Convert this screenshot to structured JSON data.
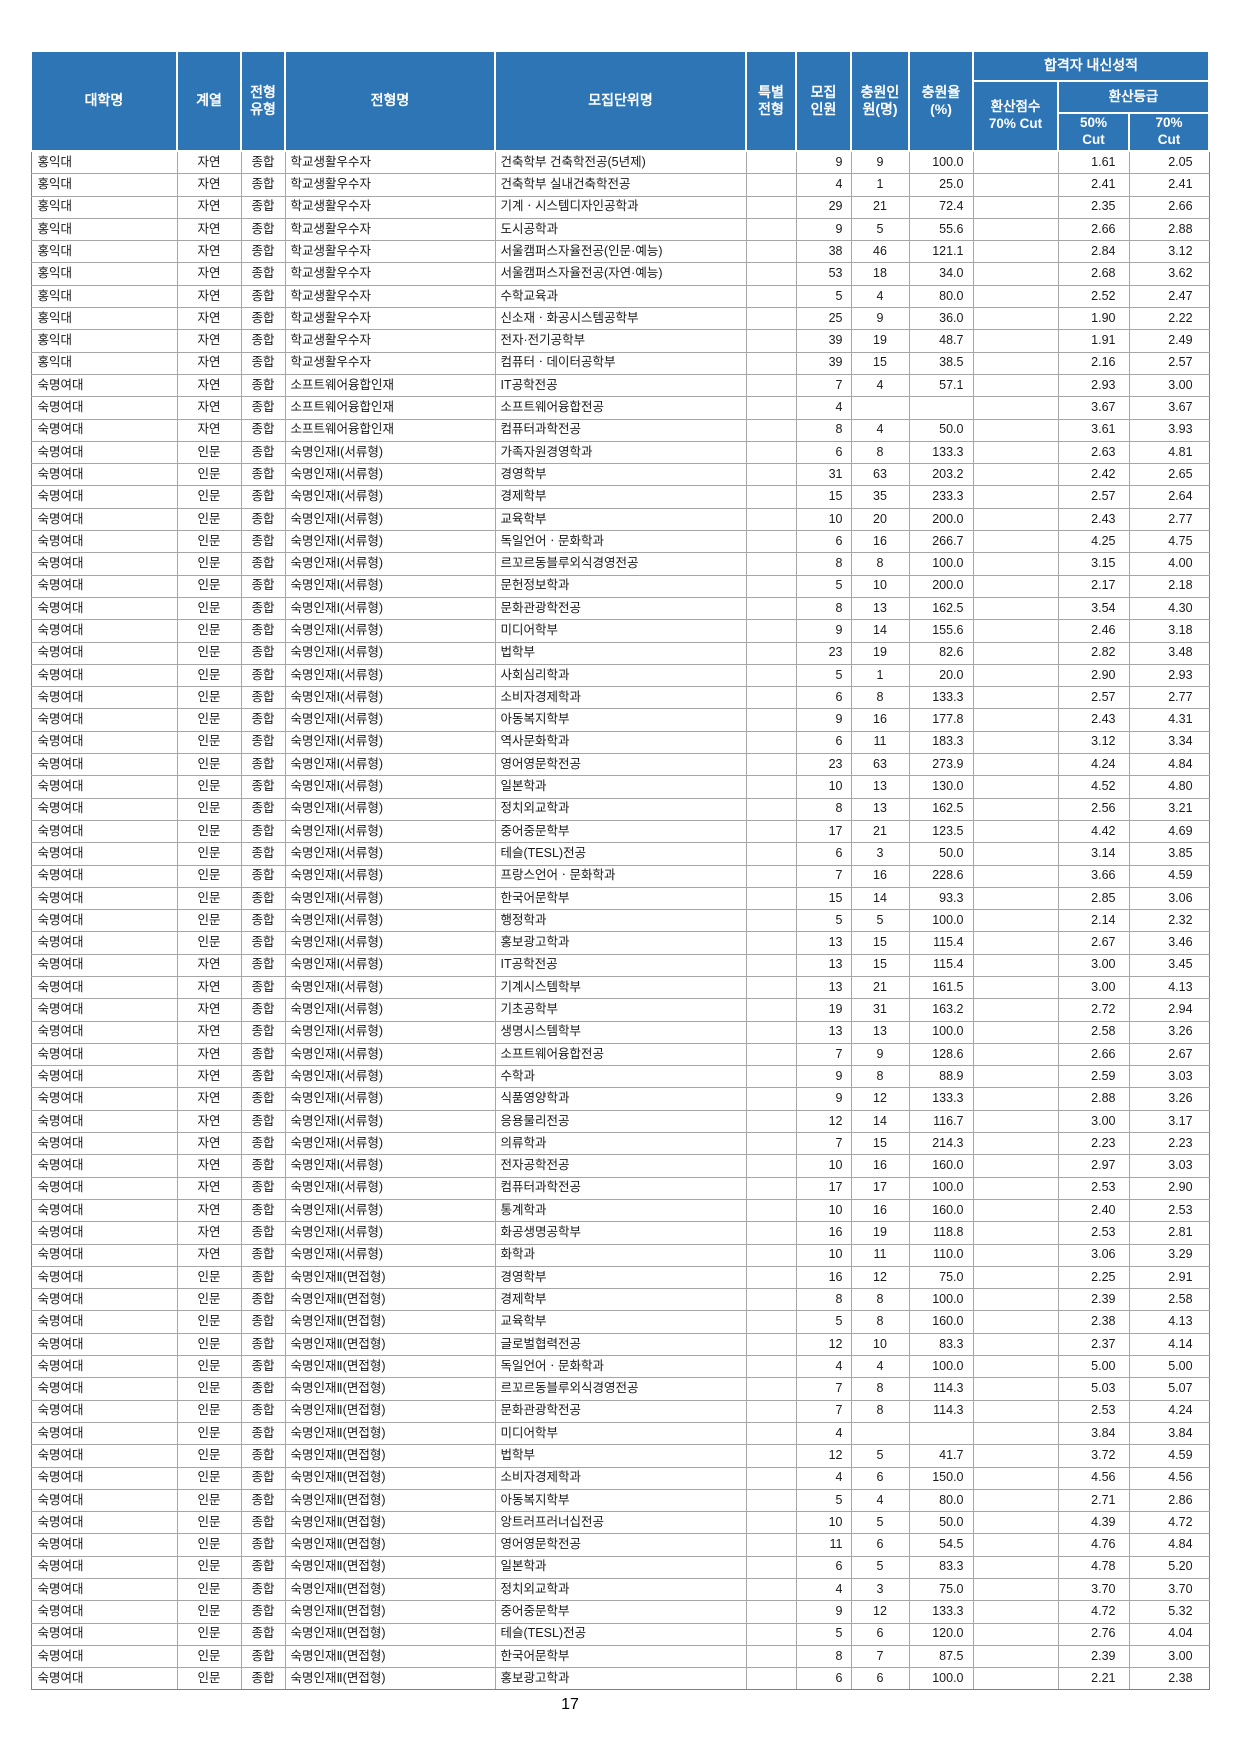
{
  "page": {
    "number": "17"
  },
  "colors": {
    "header_bg": "#2E75B6",
    "header_text": "#FFFFFF",
    "grid_line": "#A6A6A6",
    "outer_line": "#7F7F7F",
    "body_text": "#1A1A1A"
  },
  "table": {
    "headers": {
      "university": "대학명",
      "track": "계열",
      "type": "전형\n유형",
      "admission": "전형명",
      "unit": "모집단위명",
      "special": "특별\n전형",
      "quota": "모집\n인원",
      "filled": "충원인\n원(명)",
      "fill_rate": "충원율\n(%)",
      "gpa_group": "합격자 내신성적",
      "score_70cut": "환산점수\n70% Cut",
      "grade_group": "환산등급",
      "grade_50cut": "50%\nCut",
      "grade_70cut": "70%\nCut"
    },
    "column_keys": [
      "university-cell",
      "track-cell",
      "type-cell",
      "admission-cell",
      "unit-cell",
      "special-cell",
      "quota-cell",
      "filled-cell",
      "fill-rate-cell",
      "score-70cut-cell",
      "grade-50cut-cell",
      "grade-70cut-cell"
    ],
    "rows": [
      [
        "홍익대",
        "자연",
        "종합",
        "학교생활우수자",
        "건축학부 건축학전공(5년제)",
        "",
        "9",
        "9",
        "100.0",
        "",
        "1.61",
        "2.05"
      ],
      [
        "홍익대",
        "자연",
        "종합",
        "학교생활우수자",
        "건축학부 실내건축학전공",
        "",
        "4",
        "1",
        "25.0",
        "",
        "2.41",
        "2.41"
      ],
      [
        "홍익대",
        "자연",
        "종합",
        "학교생활우수자",
        "기계ㆍ시스템디자인공학과",
        "",
        "29",
        "21",
        "72.4",
        "",
        "2.35",
        "2.66"
      ],
      [
        "홍익대",
        "자연",
        "종합",
        "학교생활우수자",
        "도시공학과",
        "",
        "9",
        "5",
        "55.6",
        "",
        "2.66",
        "2.88"
      ],
      [
        "홍익대",
        "자연",
        "종합",
        "학교생활우수자",
        "서울캠퍼스자율전공(인문·예능)",
        "",
        "38",
        "46",
        "121.1",
        "",
        "2.84",
        "3.12"
      ],
      [
        "홍익대",
        "자연",
        "종합",
        "학교생활우수자",
        "서울캠퍼스자율전공(자연·예능)",
        "",
        "53",
        "18",
        "34.0",
        "",
        "2.68",
        "3.62"
      ],
      [
        "홍익대",
        "자연",
        "종합",
        "학교생활우수자",
        "수학교육과",
        "",
        "5",
        "4",
        "80.0",
        "",
        "2.52",
        "2.47"
      ],
      [
        "홍익대",
        "자연",
        "종합",
        "학교생활우수자",
        "신소재ㆍ화공시스템공학부",
        "",
        "25",
        "9",
        "36.0",
        "",
        "1.90",
        "2.22"
      ],
      [
        "홍익대",
        "자연",
        "종합",
        "학교생활우수자",
        "전자·전기공학부",
        "",
        "39",
        "19",
        "48.7",
        "",
        "1.91",
        "2.49"
      ],
      [
        "홍익대",
        "자연",
        "종합",
        "학교생활우수자",
        "컴퓨터ㆍ데이터공학부",
        "",
        "39",
        "15",
        "38.5",
        "",
        "2.16",
        "2.57"
      ],
      [
        "숙명여대",
        "자연",
        "종합",
        "소프트웨어융합인재",
        "IT공학전공",
        "",
        "7",
        "4",
        "57.1",
        "",
        "2.93",
        "3.00"
      ],
      [
        "숙명여대",
        "자연",
        "종합",
        "소프트웨어융합인재",
        "소프트웨어융합전공",
        "",
        "4",
        "",
        "",
        "",
        "3.67",
        "3.67"
      ],
      [
        "숙명여대",
        "자연",
        "종합",
        "소프트웨어융합인재",
        "컴퓨터과학전공",
        "",
        "8",
        "4",
        "50.0",
        "",
        "3.61",
        "3.93"
      ],
      [
        "숙명여대",
        "인문",
        "종합",
        "숙명인재Ⅰ(서류형)",
        "가족자원경영학과",
        "",
        "6",
        "8",
        "133.3",
        "",
        "2.63",
        "4.81"
      ],
      [
        "숙명여대",
        "인문",
        "종합",
        "숙명인재Ⅰ(서류형)",
        "경영학부",
        "",
        "31",
        "63",
        "203.2",
        "",
        "2.42",
        "2.65"
      ],
      [
        "숙명여대",
        "인문",
        "종합",
        "숙명인재Ⅰ(서류형)",
        "경제학부",
        "",
        "15",
        "35",
        "233.3",
        "",
        "2.57",
        "2.64"
      ],
      [
        "숙명여대",
        "인문",
        "종합",
        "숙명인재Ⅰ(서류형)",
        "교육학부",
        "",
        "10",
        "20",
        "200.0",
        "",
        "2.43",
        "2.77"
      ],
      [
        "숙명여대",
        "인문",
        "종합",
        "숙명인재Ⅰ(서류형)",
        "독일언어ㆍ문화학과",
        "",
        "6",
        "16",
        "266.7",
        "",
        "4.25",
        "4.75"
      ],
      [
        "숙명여대",
        "인문",
        "종합",
        "숙명인재Ⅰ(서류형)",
        "르꼬르동블루외식경영전공",
        "",
        "8",
        "8",
        "100.0",
        "",
        "3.15",
        "4.00"
      ],
      [
        "숙명여대",
        "인문",
        "종합",
        "숙명인재Ⅰ(서류형)",
        "문헌정보학과",
        "",
        "5",
        "10",
        "200.0",
        "",
        "2.17",
        "2.18"
      ],
      [
        "숙명여대",
        "인문",
        "종합",
        "숙명인재Ⅰ(서류형)",
        "문화관광학전공",
        "",
        "8",
        "13",
        "162.5",
        "",
        "3.54",
        "4.30"
      ],
      [
        "숙명여대",
        "인문",
        "종합",
        "숙명인재Ⅰ(서류형)",
        "미디어학부",
        "",
        "9",
        "14",
        "155.6",
        "",
        "2.46",
        "3.18"
      ],
      [
        "숙명여대",
        "인문",
        "종합",
        "숙명인재Ⅰ(서류형)",
        "법학부",
        "",
        "23",
        "19",
        "82.6",
        "",
        "2.82",
        "3.48"
      ],
      [
        "숙명여대",
        "인문",
        "종합",
        "숙명인재Ⅰ(서류형)",
        "사회심리학과",
        "",
        "5",
        "1",
        "20.0",
        "",
        "2.90",
        "2.93"
      ],
      [
        "숙명여대",
        "인문",
        "종합",
        "숙명인재Ⅰ(서류형)",
        "소비자경제학과",
        "",
        "6",
        "8",
        "133.3",
        "",
        "2.57",
        "2.77"
      ],
      [
        "숙명여대",
        "인문",
        "종합",
        "숙명인재Ⅰ(서류형)",
        "아동복지학부",
        "",
        "9",
        "16",
        "177.8",
        "",
        "2.43",
        "4.31"
      ],
      [
        "숙명여대",
        "인문",
        "종합",
        "숙명인재Ⅰ(서류형)",
        "역사문화학과",
        "",
        "6",
        "11",
        "183.3",
        "",
        "3.12",
        "3.34"
      ],
      [
        "숙명여대",
        "인문",
        "종합",
        "숙명인재Ⅰ(서류형)",
        "영어영문학전공",
        "",
        "23",
        "63",
        "273.9",
        "",
        "4.24",
        "4.84"
      ],
      [
        "숙명여대",
        "인문",
        "종합",
        "숙명인재Ⅰ(서류형)",
        "일본학과",
        "",
        "10",
        "13",
        "130.0",
        "",
        "4.52",
        "4.80"
      ],
      [
        "숙명여대",
        "인문",
        "종합",
        "숙명인재Ⅰ(서류형)",
        "정치외교학과",
        "",
        "8",
        "13",
        "162.5",
        "",
        "2.56",
        "3.21"
      ],
      [
        "숙명여대",
        "인문",
        "종합",
        "숙명인재Ⅰ(서류형)",
        "중어중문학부",
        "",
        "17",
        "21",
        "123.5",
        "",
        "4.42",
        "4.69"
      ],
      [
        "숙명여대",
        "인문",
        "종합",
        "숙명인재Ⅰ(서류형)",
        "테슬(TESL)전공",
        "",
        "6",
        "3",
        "50.0",
        "",
        "3.14",
        "3.85"
      ],
      [
        "숙명여대",
        "인문",
        "종합",
        "숙명인재Ⅰ(서류형)",
        "프랑스언어ㆍ문화학과",
        "",
        "7",
        "16",
        "228.6",
        "",
        "3.66",
        "4.59"
      ],
      [
        "숙명여대",
        "인문",
        "종합",
        "숙명인재Ⅰ(서류형)",
        "한국어문학부",
        "",
        "15",
        "14",
        "93.3",
        "",
        "2.85",
        "3.06"
      ],
      [
        "숙명여대",
        "인문",
        "종합",
        "숙명인재Ⅰ(서류형)",
        "행정학과",
        "",
        "5",
        "5",
        "100.0",
        "",
        "2.14",
        "2.32"
      ],
      [
        "숙명여대",
        "인문",
        "종합",
        "숙명인재Ⅰ(서류형)",
        "홍보광고학과",
        "",
        "13",
        "15",
        "115.4",
        "",
        "2.67",
        "3.46"
      ],
      [
        "숙명여대",
        "자연",
        "종합",
        "숙명인재Ⅰ(서류형)",
        "IT공학전공",
        "",
        "13",
        "15",
        "115.4",
        "",
        "3.00",
        "3.45"
      ],
      [
        "숙명여대",
        "자연",
        "종합",
        "숙명인재Ⅰ(서류형)",
        "기계시스템학부",
        "",
        "13",
        "21",
        "161.5",
        "",
        "3.00",
        "4.13"
      ],
      [
        "숙명여대",
        "자연",
        "종합",
        "숙명인재Ⅰ(서류형)",
        "기초공학부",
        "",
        "19",
        "31",
        "163.2",
        "",
        "2.72",
        "2.94"
      ],
      [
        "숙명여대",
        "자연",
        "종합",
        "숙명인재Ⅰ(서류형)",
        "생명시스템학부",
        "",
        "13",
        "13",
        "100.0",
        "",
        "2.58",
        "3.26"
      ],
      [
        "숙명여대",
        "자연",
        "종합",
        "숙명인재Ⅰ(서류형)",
        "소프트웨어융합전공",
        "",
        "7",
        "9",
        "128.6",
        "",
        "2.66",
        "2.67"
      ],
      [
        "숙명여대",
        "자연",
        "종합",
        "숙명인재Ⅰ(서류형)",
        "수학과",
        "",
        "9",
        "8",
        "88.9",
        "",
        "2.59",
        "3.03"
      ],
      [
        "숙명여대",
        "자연",
        "종합",
        "숙명인재Ⅰ(서류형)",
        "식품영양학과",
        "",
        "9",
        "12",
        "133.3",
        "",
        "2.88",
        "3.26"
      ],
      [
        "숙명여대",
        "자연",
        "종합",
        "숙명인재Ⅰ(서류형)",
        "응용물리전공",
        "",
        "12",
        "14",
        "116.7",
        "",
        "3.00",
        "3.17"
      ],
      [
        "숙명여대",
        "자연",
        "종합",
        "숙명인재Ⅰ(서류형)",
        "의류학과",
        "",
        "7",
        "15",
        "214.3",
        "",
        "2.23",
        "2.23"
      ],
      [
        "숙명여대",
        "자연",
        "종합",
        "숙명인재Ⅰ(서류형)",
        "전자공학전공",
        "",
        "10",
        "16",
        "160.0",
        "",
        "2.97",
        "3.03"
      ],
      [
        "숙명여대",
        "자연",
        "종합",
        "숙명인재Ⅰ(서류형)",
        "컴퓨터과학전공",
        "",
        "17",
        "17",
        "100.0",
        "",
        "2.53",
        "2.90"
      ],
      [
        "숙명여대",
        "자연",
        "종합",
        "숙명인재Ⅰ(서류형)",
        "통계학과",
        "",
        "10",
        "16",
        "160.0",
        "",
        "2.40",
        "2.53"
      ],
      [
        "숙명여대",
        "자연",
        "종합",
        "숙명인재Ⅰ(서류형)",
        "화공생명공학부",
        "",
        "16",
        "19",
        "118.8",
        "",
        "2.53",
        "2.81"
      ],
      [
        "숙명여대",
        "자연",
        "종합",
        "숙명인재Ⅰ(서류형)",
        "화학과",
        "",
        "10",
        "11",
        "110.0",
        "",
        "3.06",
        "3.29"
      ],
      [
        "숙명여대",
        "인문",
        "종합",
        "숙명인재Ⅱ(면접형)",
        "경영학부",
        "",
        "16",
        "12",
        "75.0",
        "",
        "2.25",
        "2.91"
      ],
      [
        "숙명여대",
        "인문",
        "종합",
        "숙명인재Ⅱ(면접형)",
        "경제학부",
        "",
        "8",
        "8",
        "100.0",
        "",
        "2.39",
        "2.58"
      ],
      [
        "숙명여대",
        "인문",
        "종합",
        "숙명인재Ⅱ(면접형)",
        "교육학부",
        "",
        "5",
        "8",
        "160.0",
        "",
        "2.38",
        "4.13"
      ],
      [
        "숙명여대",
        "인문",
        "종합",
        "숙명인재Ⅱ(면접형)",
        "글로벌협력전공",
        "",
        "12",
        "10",
        "83.3",
        "",
        "2.37",
        "4.14"
      ],
      [
        "숙명여대",
        "인문",
        "종합",
        "숙명인재Ⅱ(면접형)",
        "독일언어ㆍ문화학과",
        "",
        "4",
        "4",
        "100.0",
        "",
        "5.00",
        "5.00"
      ],
      [
        "숙명여대",
        "인문",
        "종합",
        "숙명인재Ⅱ(면접형)",
        "르꼬르동블루외식경영전공",
        "",
        "7",
        "8",
        "114.3",
        "",
        "5.03",
        "5.07"
      ],
      [
        "숙명여대",
        "인문",
        "종합",
        "숙명인재Ⅱ(면접형)",
        "문화관광학전공",
        "",
        "7",
        "8",
        "114.3",
        "",
        "2.53",
        "4.24"
      ],
      [
        "숙명여대",
        "인문",
        "종합",
        "숙명인재Ⅱ(면접형)",
        "미디어학부",
        "",
        "4",
        "",
        "",
        "",
        "3.84",
        "3.84"
      ],
      [
        "숙명여대",
        "인문",
        "종합",
        "숙명인재Ⅱ(면접형)",
        "법학부",
        "",
        "12",
        "5",
        "41.7",
        "",
        "3.72",
        "4.59"
      ],
      [
        "숙명여대",
        "인문",
        "종합",
        "숙명인재Ⅱ(면접형)",
        "소비자경제학과",
        "",
        "4",
        "6",
        "150.0",
        "",
        "4.56",
        "4.56"
      ],
      [
        "숙명여대",
        "인문",
        "종합",
        "숙명인재Ⅱ(면접형)",
        "아동복지학부",
        "",
        "5",
        "4",
        "80.0",
        "",
        "2.71",
        "2.86"
      ],
      [
        "숙명여대",
        "인문",
        "종합",
        "숙명인재Ⅱ(면접형)",
        "앙트러프러너십전공",
        "",
        "10",
        "5",
        "50.0",
        "",
        "4.39",
        "4.72"
      ],
      [
        "숙명여대",
        "인문",
        "종합",
        "숙명인재Ⅱ(면접형)",
        "영어영문학전공",
        "",
        "11",
        "6",
        "54.5",
        "",
        "4.76",
        "4.84"
      ],
      [
        "숙명여대",
        "인문",
        "종합",
        "숙명인재Ⅱ(면접형)",
        "일본학과",
        "",
        "6",
        "5",
        "83.3",
        "",
        "4.78",
        "5.20"
      ],
      [
        "숙명여대",
        "인문",
        "종합",
        "숙명인재Ⅱ(면접형)",
        "정치외교학과",
        "",
        "4",
        "3",
        "75.0",
        "",
        "3.70",
        "3.70"
      ],
      [
        "숙명여대",
        "인문",
        "종합",
        "숙명인재Ⅱ(면접형)",
        "중어중문학부",
        "",
        "9",
        "12",
        "133.3",
        "",
        "4.72",
        "5.32"
      ],
      [
        "숙명여대",
        "인문",
        "종합",
        "숙명인재Ⅱ(면접형)",
        "테슬(TESL)전공",
        "",
        "5",
        "6",
        "120.0",
        "",
        "2.76",
        "4.04"
      ],
      [
        "숙명여대",
        "인문",
        "종합",
        "숙명인재Ⅱ(면접형)",
        "한국어문학부",
        "",
        "8",
        "7",
        "87.5",
        "",
        "2.39",
        "3.00"
      ],
      [
        "숙명여대",
        "인문",
        "종합",
        "숙명인재Ⅱ(면접형)",
        "홍보광고학과",
        "",
        "6",
        "6",
        "100.0",
        "",
        "2.21",
        "2.38"
      ]
    ]
  }
}
